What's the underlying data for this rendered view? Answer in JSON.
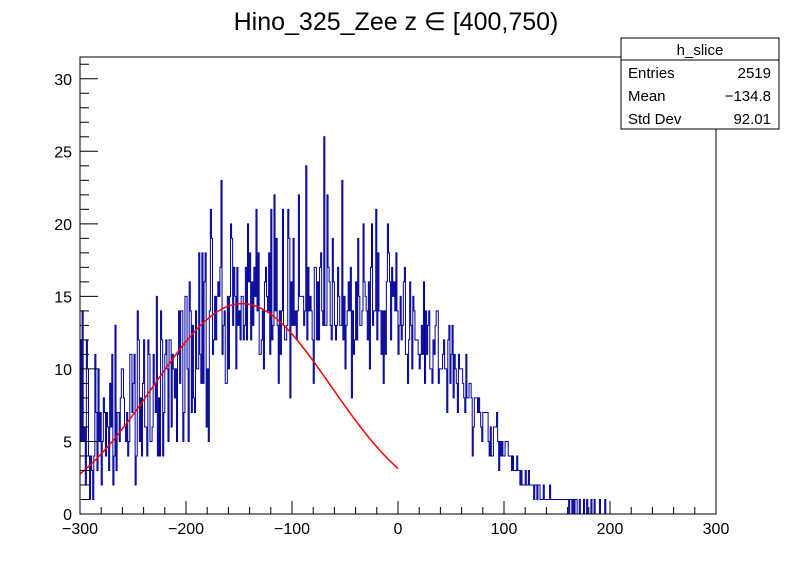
{
  "chart_data": {
    "type": "histogram",
    "title": "Hino_325_Zee z  ∈ [400,750)",
    "xlabel": "",
    "ylabel": "",
    "xlim": [
      -300,
      300
    ],
    "ylim": [
      0,
      31.5
    ],
    "x_ticks": [
      -300,
      -200,
      -100,
      0,
      100,
      200,
      300
    ],
    "x_tick_labels": [
      "−300",
      "−200",
      "−100",
      "0",
      "100",
      "200",
      "300"
    ],
    "y_ticks": [
      0,
      5,
      10,
      15,
      20,
      25,
      30
    ],
    "y_tick_labels": [
      "0",
      "5",
      "10",
      "15",
      "20",
      "25",
      "30"
    ],
    "bin_width": 1,
    "histogram_color": "#000099",
    "fit_color": "#ff0000",
    "fit": {
      "function": "gaus",
      "amplitude": 14.5,
      "mean": -147,
      "sigma": 84,
      "range": [
        -300,
        0
      ]
    },
    "stats_box": {
      "name": "h_slice",
      "rows": [
        {
          "label": "Entries",
          "value": "2519"
        },
        {
          "label": "Mean",
          "value": "−134.8"
        },
        {
          "label": "Std Dev",
          "value": "92.01"
        }
      ]
    },
    "bin_counts": [
      12,
      5,
      14,
      5,
      6,
      2,
      12,
      10,
      4,
      1,
      4,
      3,
      1,
      4,
      11,
      7,
      3,
      10,
      5,
      7,
      2,
      5,
      8,
      7,
      4,
      7,
      6,
      3,
      9,
      6,
      11,
      2,
      4,
      13,
      3,
      7,
      7,
      5,
      8,
      10,
      10,
      8,
      6,
      5,
      7,
      4,
      5,
      11,
      11,
      7,
      9,
      11,
      2,
      4,
      14,
      12,
      5,
      8,
      4,
      9,
      12,
      6,
      6,
      4,
      12,
      11,
      5,
      5,
      6,
      11,
      9,
      7,
      15,
      4,
      8,
      4,
      14,
      12,
      4,
      7,
      11,
      12,
      10,
      5,
      12,
      12,
      6,
      11,
      10,
      8,
      10,
      5,
      11,
      14,
      9,
      14,
      14,
      5,
      7,
      15,
      15,
      10,
      5,
      16,
      14,
      7,
      13,
      8,
      7,
      14,
      10,
      10,
      18,
      11,
      9,
      18,
      9,
      16,
      18,
      6,
      10,
      5,
      14,
      21,
      19,
      11,
      12,
      15,
      12,
      15,
      16,
      15,
      17,
      23,
      11,
      13,
      14,
      9,
      9,
      15,
      10,
      15,
      20,
      19,
      13,
      17,
      15,
      10,
      17,
      13,
      14,
      12,
      15,
      15,
      12,
      13,
      17,
      12,
      20,
      16,
      18,
      12,
      16,
      13,
      17,
      15,
      21,
      14,
      18,
      11,
      11,
      12,
      14,
      10,
      16,
      17,
      15,
      14,
      18,
      11,
      21,
      12,
      13,
      22,
      14,
      19,
      13,
      9,
      14,
      11,
      14,
      21,
      13,
      12,
      12,
      13,
      21,
      19,
      8,
      16,
      13,
      19,
      13,
      14,
      12,
      14,
      22,
      15,
      15,
      15,
      15,
      13,
      14,
      24,
      12,
      17,
      14,
      15,
      14,
      12,
      9,
      17,
      17,
      12,
      16,
      12,
      17,
      18,
      14,
      13,
      26,
      13,
      13,
      22,
      17,
      16,
      13,
      12,
      19,
      16,
      13,
      12,
      13,
      17,
      15,
      13,
      13,
      23,
      12,
      15,
      10,
      13,
      14,
      16,
      14,
      17,
      8,
      14,
      11,
      12,
      16,
      12,
      19,
      15,
      13,
      13,
      14,
      20,
      16,
      15,
      14,
      12,
      16,
      10,
      17,
      20,
      13,
      14,
      14,
      21,
      12,
      18,
      14,
      14,
      11,
      14,
      9,
      14,
      11,
      16,
      20,
      18,
      16,
      12,
      17,
      15,
      16,
      14,
      18,
      14,
      11,
      13,
      15,
      12,
      13,
      16,
      17,
      11,
      11,
      9,
      12,
      16,
      13,
      10,
      15,
      14,
      12,
      12,
      12,
      11,
      10,
      11,
      13,
      11,
      16,
      9,
      14,
      11,
      13,
      14,
      10,
      10,
      9,
      12,
      11,
      13,
      14,
      14,
      9,
      10,
      10,
      10,
      11,
      12,
      10,
      10,
      7,
      12,
      13,
      9,
      11,
      13,
      8,
      11,
      10,
      9,
      7,
      11,
      10,
      10,
      10,
      9,
      8,
      7,
      11,
      8,
      8,
      9,
      9,
      8,
      4,
      6,
      8,
      8,
      8,
      7,
      8,
      7,
      6,
      5,
      7,
      7,
      7,
      7,
      7,
      5,
      4,
      6,
      4,
      4,
      6,
      6,
      6,
      7,
      5,
      3,
      5,
      4,
      5,
      4,
      4,
      5,
      5,
      5,
      4,
      4,
      4,
      3,
      4,
      3,
      3,
      3,
      4,
      3,
      3,
      2,
      3,
      2,
      2,
      2,
      3,
      2,
      2,
      3,
      2,
      2,
      2,
      2,
      1,
      2,
      2,
      1,
      2,
      2,
      1,
      1,
      1,
      2,
      1,
      1,
      1,
      1,
      1,
      2,
      1,
      1,
      1,
      1,
      1,
      1,
      1,
      1,
      1,
      1,
      1,
      1,
      1,
      1,
      1,
      1,
      1,
      0,
      1,
      1,
      0,
      1,
      0,
      1,
      1,
      0,
      0,
      1,
      0,
      0,
      0,
      1,
      0,
      0,
      1,
      0,
      0,
      0,
      1,
      0,
      0,
      1,
      0,
      0,
      0,
      0,
      1,
      0,
      0,
      0,
      0,
      1,
      0,
      0,
      0,
      0,
      0,
      0,
      0,
      0,
      0,
      0,
      0,
      0,
      0,
      0,
      0,
      0,
      0,
      0,
      0,
      0,
      0,
      0,
      0,
      0,
      0,
      0,
      0,
      0,
      0,
      0,
      0,
      0,
      0,
      0,
      0,
      0,
      0,
      0,
      0,
      0,
      0,
      0,
      0,
      0,
      0,
      0,
      0,
      0,
      0,
      0,
      0,
      0,
      0,
      0,
      0,
      0,
      0,
      0,
      0,
      0,
      0,
      0,
      0,
      0,
      0,
      0,
      0,
      0,
      0,
      0,
      0,
      0,
      0,
      0,
      0,
      0,
      0,
      0,
      0,
      0,
      0,
      0,
      0,
      0,
      0,
      0,
      0,
      0,
      0,
      0,
      0,
      0,
      0,
      0,
      0,
      0,
      0,
      0,
      0,
      0,
      0,
      0,
      0,
      0
    ]
  }
}
